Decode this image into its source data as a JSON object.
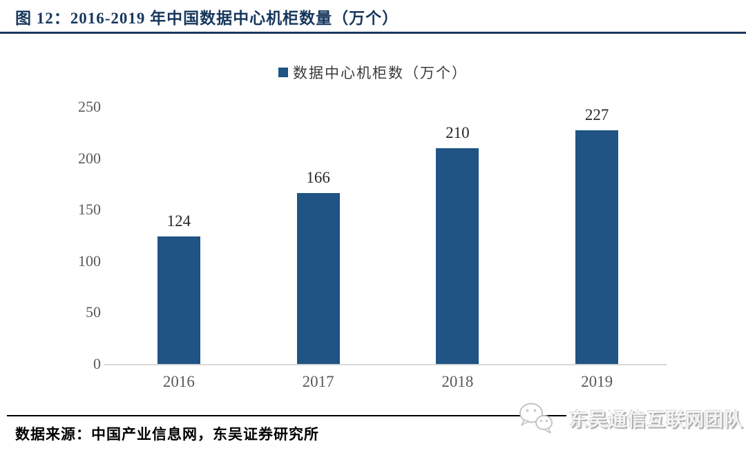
{
  "header": {
    "title": "图 12：2016-2019 年中国数据中心机柜数量（万个）"
  },
  "chart_data": {
    "type": "bar",
    "title": "2016-2019 年中国数据中心机柜数量（万个）",
    "legend": "数据中心机柜数（万个）",
    "legend_position": "top-center",
    "categories": [
      "2016",
      "2017",
      "2018",
      "2019"
    ],
    "values": [
      124,
      166,
      210,
      227
    ],
    "data_labels": [
      "124",
      "166",
      "210",
      "227"
    ],
    "xlabel": "",
    "ylabel": "",
    "ylim": [
      0,
      250
    ],
    "yticks": [
      0,
      50,
      100,
      150,
      200,
      250
    ],
    "grid": false,
    "bar_color": "#1F5484"
  },
  "footer": {
    "source": "数据来源：中国产业信息网，东吴证券研究所",
    "watermark": "东吴通信互联网团队",
    "watermark_icon": "wechat-icon"
  },
  "colors": {
    "title": "#17375D",
    "bar": "#1F5484",
    "axis_text": "#595959",
    "data_label": "#262626",
    "baseline": "#D9D9D9",
    "top_divider": "#17375D",
    "bottom_divider": "#000000",
    "watermark_gray": "#ababab"
  }
}
